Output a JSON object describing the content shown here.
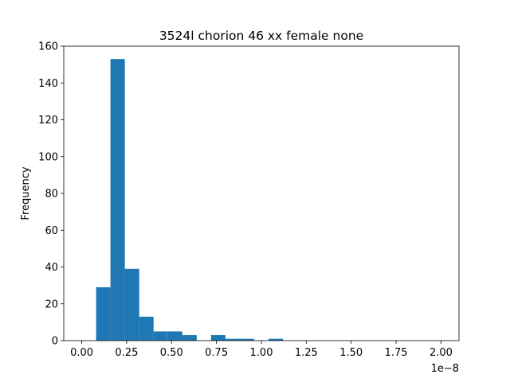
{
  "chart_data": {
    "type": "bar",
    "title": "3524l chorion 46 xx female none",
    "xlabel": "",
    "ylabel": "Frequency",
    "x_offset_label": "1e−8",
    "xlim": [
      -0.1,
      2.1
    ],
    "ylim": [
      0,
      160
    ],
    "x_ticks": [
      0.0,
      0.25,
      0.5,
      0.75,
      1.0,
      1.25,
      1.5,
      1.75,
      2.0
    ],
    "x_tick_labels": [
      "0.00",
      "0.25",
      "0.50",
      "0.75",
      "1.00",
      "1.25",
      "1.50",
      "1.75",
      "2.00"
    ],
    "y_ticks": [
      0,
      20,
      40,
      60,
      80,
      100,
      120,
      140,
      160
    ],
    "y_tick_labels": [
      "0",
      "20",
      "40",
      "60",
      "80",
      "100",
      "120",
      "140",
      "160"
    ],
    "bar_color": "#1f77b4",
    "grid": false,
    "bins": [
      {
        "x0": 0.08,
        "x1": 0.16,
        "count": 29
      },
      {
        "x0": 0.16,
        "x1": 0.24,
        "count": 153
      },
      {
        "x0": 0.24,
        "x1": 0.32,
        "count": 39
      },
      {
        "x0": 0.32,
        "x1": 0.4,
        "count": 13
      },
      {
        "x0": 0.4,
        "x1": 0.48,
        "count": 5
      },
      {
        "x0": 0.48,
        "x1": 0.56,
        "count": 5
      },
      {
        "x0": 0.56,
        "x1": 0.64,
        "count": 3
      },
      {
        "x0": 0.64,
        "x1": 0.72,
        "count": 0
      },
      {
        "x0": 0.72,
        "x1": 0.8,
        "count": 3
      },
      {
        "x0": 0.8,
        "x1": 0.88,
        "count": 1
      },
      {
        "x0": 0.88,
        "x1": 0.96,
        "count": 1
      },
      {
        "x0": 0.96,
        "x1": 1.04,
        "count": 0
      },
      {
        "x0": 1.04,
        "x1": 1.12,
        "count": 1
      }
    ]
  }
}
